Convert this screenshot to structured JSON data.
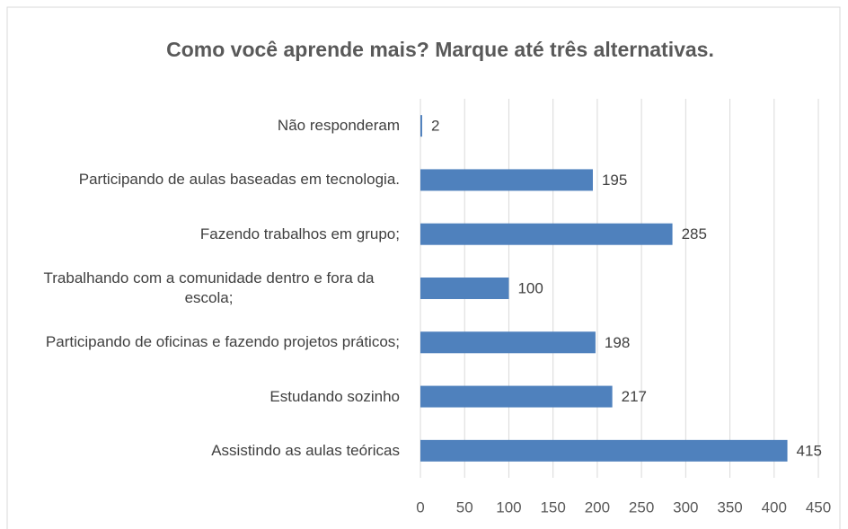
{
  "chart_data": {
    "type": "bar",
    "orientation": "horizontal",
    "title": "Como você aprende mais? Marque até três alternativas.",
    "categories": [
      "Não responderam",
      "Participando de aulas baseadas em tecnologia.",
      "Fazendo trabalhos em grupo;",
      "Trabalhando com a comunidade dentro e fora da escola;",
      "Participando de oficinas e fazendo projetos práticos;",
      "Estudando sozinho",
      "Assistindo as aulas teóricas"
    ],
    "values": [
      2,
      195,
      285,
      100,
      198,
      217,
      415
    ],
    "color": "#4f81bd",
    "xlim": [
      0,
      450
    ],
    "xticks": [
      0,
      50,
      100,
      150,
      200,
      250,
      300,
      350,
      400,
      450
    ],
    "grid": true
  }
}
